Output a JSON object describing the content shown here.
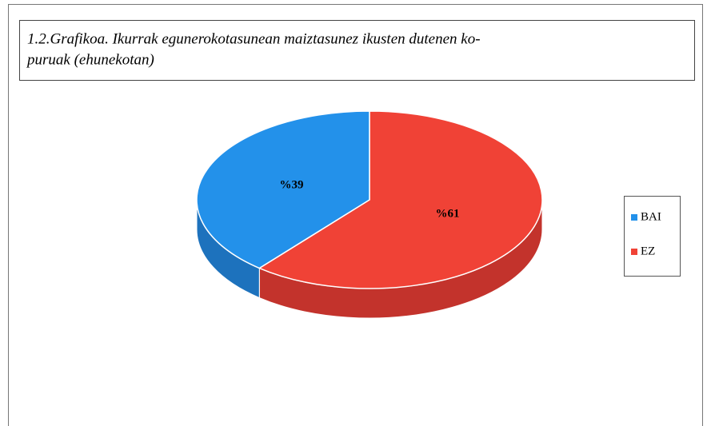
{
  "chart_data": {
    "type": "pie",
    "title": [
      "1.2.Grafikoa. Ikurrak egunerokotasunean maiztasunez ikusten dutenen ko-",
      "puruak (ehunekotan)"
    ],
    "categories": [
      "BAI",
      "EZ"
    ],
    "values": [
      39,
      61
    ],
    "value_labels": [
      "%39",
      "%61"
    ],
    "colors": [
      "#2391ea",
      "#f04236"
    ],
    "side_colors": [
      "#1d72bd",
      "#c3332c"
    ],
    "legend": "right"
  }
}
